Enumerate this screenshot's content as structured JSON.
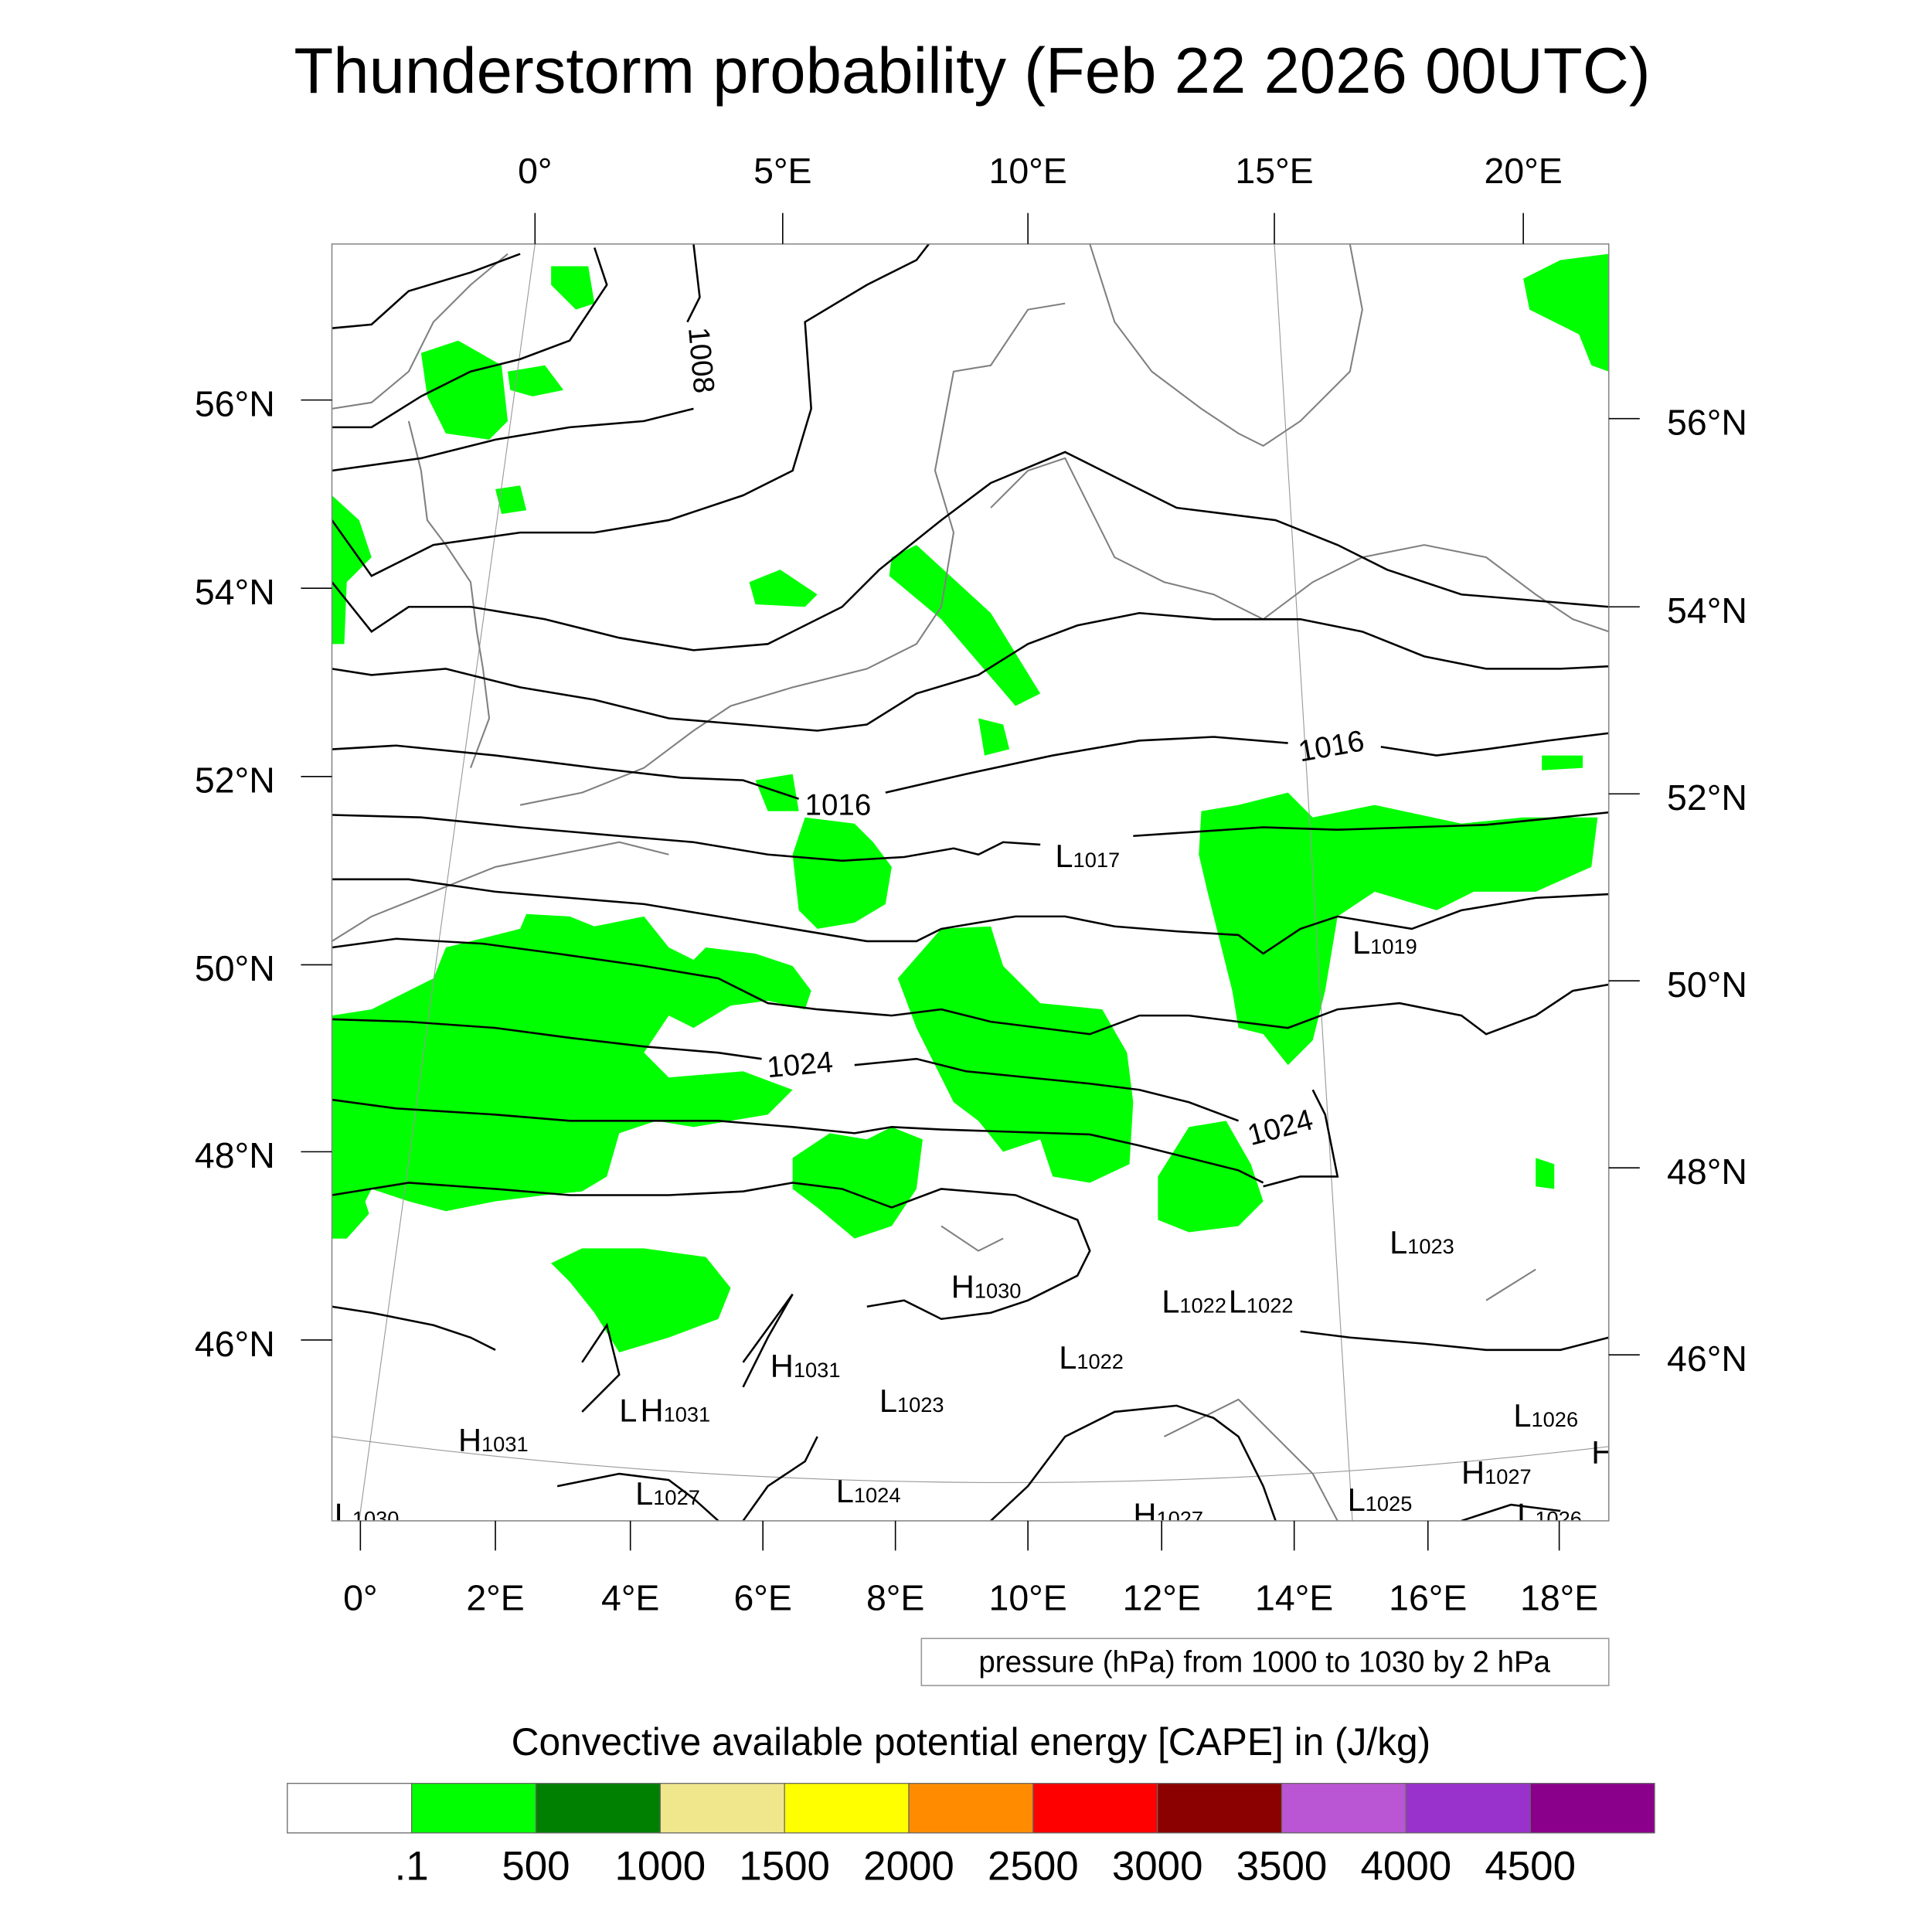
{
  "title": "Thunderstorm probability (Feb 22 2026 00UTC)",
  "axes": {
    "top_lon": [
      "0°",
      "5°E",
      "10°E",
      "15°E",
      "20°E"
    ],
    "bottom_lon": [
      "0°",
      "2°E",
      "4°E",
      "6°E",
      "8°E",
      "10°E",
      "12°E",
      "14°E",
      "16°E",
      "18°E"
    ],
    "left_lat": [
      "56°N",
      "54°N",
      "52°N",
      "50°N",
      "48°N",
      "46°N"
    ],
    "right_lat": [
      "56°N",
      "54°N",
      "52°N",
      "50°N",
      "48°N",
      "46°N"
    ]
  },
  "contour_labels": [
    "1008",
    "1016",
    "1016",
    "1024",
    "1024"
  ],
  "pressure_centers": [
    {
      "type": "L",
      "value": "1017"
    },
    {
      "type": "L",
      "value": "1019"
    },
    {
      "type": "L",
      "value": "1023"
    },
    {
      "type": "H",
      "value": "1030"
    },
    {
      "type": "L",
      "value": "1022"
    },
    {
      "type": "L",
      "value": "1022"
    },
    {
      "type": "L",
      "value": "1022"
    },
    {
      "type": "H",
      "value": "1031"
    },
    {
      "type": "L",
      "value": "1023"
    },
    {
      "type": "L",
      "value": ""
    },
    {
      "type": "H",
      "value": "1031"
    },
    {
      "type": "H",
      "value": "1031"
    },
    {
      "type": "L",
      "value": "1026"
    },
    {
      "type": "L",
      "value": "1027"
    },
    {
      "type": "L",
      "value": "1024"
    },
    {
      "type": "H",
      "value": "1027"
    },
    {
      "type": "L",
      "value": "1025"
    },
    {
      "type": "H",
      "value": "1027"
    },
    {
      "type": "L",
      "value": "1026"
    },
    {
      "type": "L",
      "value": "1030"
    },
    {
      "type": "H",
      "value": ""
    }
  ],
  "contour_info": "pressure (hPa) from 1000 to 1030 by 2 hPa",
  "colorbar": {
    "title": "Convective available potential energy [CAPE] in (J/kg)",
    "colors": [
      "#ffffff",
      "#00ff00",
      "#008000",
      "#f0e68c",
      "#ffff00",
      "#ff8c00",
      "#ff0000",
      "#8b0000",
      "#ba55d3",
      "#9932cc",
      "#8b008b"
    ],
    "labels": [
      ".1",
      "500",
      "1000",
      "1500",
      "2000",
      "2500",
      "3000",
      "3500",
      "4000",
      "4500"
    ]
  }
}
